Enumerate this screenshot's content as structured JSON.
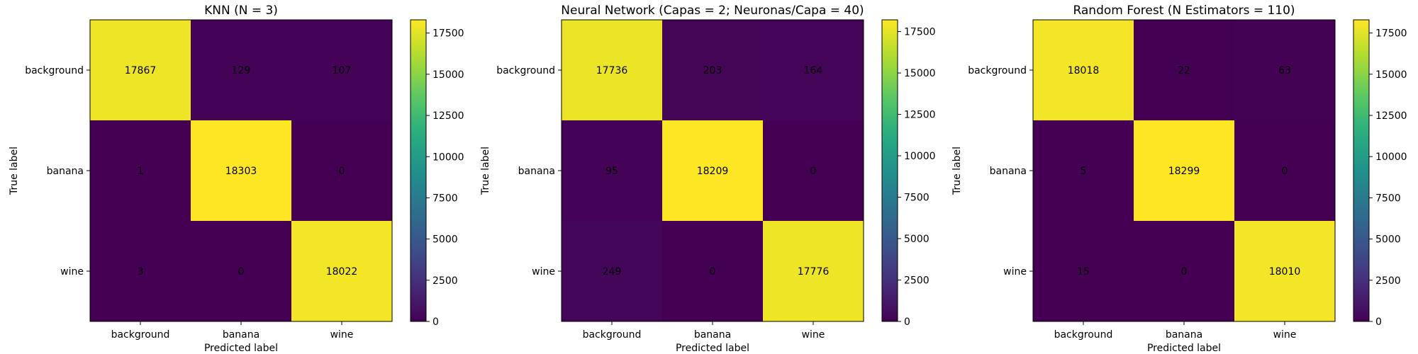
{
  "chart_data": [
    {
      "type": "heatmap",
      "title": "KNN (N = 3)",
      "xlabel": "Predicted label",
      "ylabel": "True label",
      "x_categories": [
        "background",
        "banana",
        "wine"
      ],
      "y_categories": [
        "background",
        "banana",
        "wine"
      ],
      "values": [
        [
          17867,
          129,
          107
        ],
        [
          1,
          18303,
          0
        ],
        [
          3,
          0,
          18022
        ]
      ],
      "colorbar": {
        "colormap": "viridis",
        "range": [
          0,
          18303
        ],
        "ticks": [
          0,
          2500,
          5000,
          7500,
          10000,
          12500,
          15000,
          17500
        ]
      }
    },
    {
      "type": "heatmap",
      "title": "Neural Network (Capas = 2; Neuronas/Capa = 40)",
      "xlabel": "Predicted label",
      "ylabel": "True label",
      "x_categories": [
        "background",
        "banana",
        "wine"
      ],
      "y_categories": [
        "background",
        "banana",
        "wine"
      ],
      "values": [
        [
          17736,
          203,
          164
        ],
        [
          95,
          18209,
          0
        ],
        [
          249,
          0,
          17776
        ]
      ],
      "colorbar": {
        "colormap": "viridis",
        "range": [
          0,
          18209
        ],
        "ticks": [
          0,
          2500,
          5000,
          7500,
          10000,
          12500,
          15000,
          17500
        ]
      }
    },
    {
      "type": "heatmap",
      "title": "Random Forest (N Estimators = 110)",
      "xlabel": "Predicted label",
      "ylabel": "True label",
      "x_categories": [
        "background",
        "banana",
        "wine"
      ],
      "y_categories": [
        "background",
        "banana",
        "wine"
      ],
      "values": [
        [
          18018,
          22,
          63
        ],
        [
          5,
          18299,
          0
        ],
        [
          15,
          0,
          18010
        ]
      ],
      "colorbar": {
        "colormap": "viridis",
        "range": [
          0,
          18299
        ],
        "ticks": [
          0,
          2500,
          5000,
          7500,
          10000,
          12500,
          15000,
          17500
        ]
      }
    }
  ],
  "colors": {
    "low_text": "#fde725",
    "high_text": "#1f1f1f",
    "viridis_low": "#440154",
    "viridis_high": "#fde725"
  }
}
